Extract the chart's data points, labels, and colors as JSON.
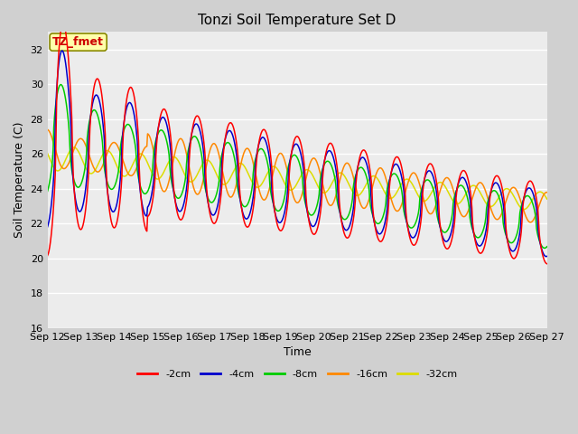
{
  "title": "Tonzi Soil Temperature Set D",
  "xlabel": "Time",
  "ylabel": "Soil Temperature (C)",
  "ylim": [
    16,
    33
  ],
  "yticks": [
    16,
    18,
    20,
    22,
    24,
    26,
    28,
    30,
    32
  ],
  "fig_bg_color": "#d0d0d0",
  "plot_bg_color": "#ececec",
  "series_colors": [
    "#ff0000",
    "#0000cc",
    "#00cc00",
    "#ff8800",
    "#dddd00"
  ],
  "series_labels": [
    "-2cm",
    "-4cm",
    "-8cm",
    "-16cm",
    "-32cm"
  ],
  "annotation_text": "TZ_fmet",
  "annotation_bg": "#ffffaa",
  "annotation_border": "#888800",
  "n_days": 15,
  "start_day": 12
}
